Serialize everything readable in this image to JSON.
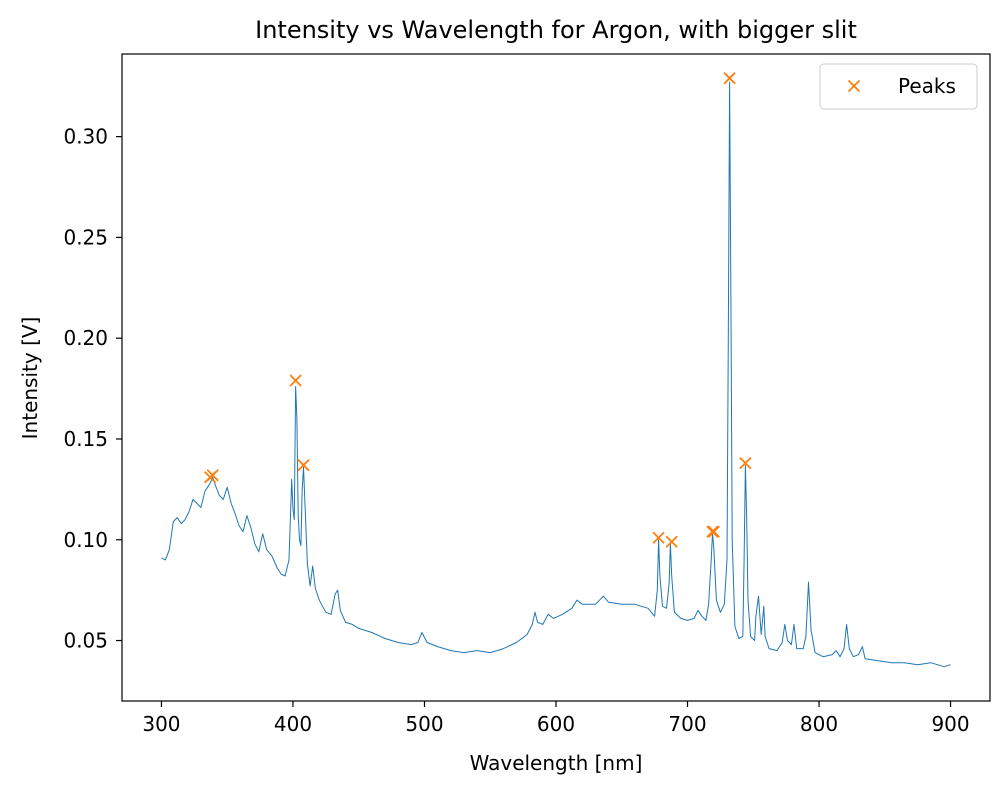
{
  "chart_data": {
    "type": "line",
    "title": "Intensity vs Wavelength for Argon, with bigger slit",
    "xlabel": "Wavelength [nm]",
    "ylabel": "Intensity [V]",
    "xlim": [
      270,
      930
    ],
    "ylim": [
      0.02,
      0.341
    ],
    "xticks": [
      300,
      400,
      500,
      600,
      700,
      800,
      900
    ],
    "xtick_labels": [
      "300",
      "400",
      "500",
      "600",
      "700",
      "800",
      "900"
    ],
    "yticks": [
      0.05,
      0.1,
      0.15,
      0.2,
      0.25,
      0.3
    ],
    "ytick_labels": [
      "0.05",
      "0.10",
      "0.15",
      "0.20",
      "0.25",
      "0.30"
    ],
    "grid": false,
    "legend": {
      "position": "top-right",
      "entries": [
        "Peaks"
      ]
    },
    "colors": {
      "spectrum": "#1f77b4",
      "peaks": "#ff7f0e"
    },
    "series": [
      {
        "kind": "line",
        "points": [
          [
            300,
            0.091
          ],
          [
            303,
            0.09
          ],
          [
            306,
            0.095
          ],
          [
            309,
            0.109
          ],
          [
            312,
            0.111
          ],
          [
            315,
            0.108
          ],
          [
            318,
            0.11
          ],
          [
            321,
            0.114
          ],
          [
            324,
            0.12
          ],
          [
            327,
            0.118
          ],
          [
            330,
            0.116
          ],
          [
            333,
            0.124
          ],
          [
            335,
            0.126
          ],
          [
            337,
            0.128
          ],
          [
            339,
            0.131
          ],
          [
            341,
            0.127
          ],
          [
            344,
            0.122
          ],
          [
            347,
            0.12
          ],
          [
            350,
            0.126
          ],
          [
            353,
            0.118
          ],
          [
            356,
            0.113
          ],
          [
            359,
            0.107
          ],
          [
            362,
            0.104
          ],
          [
            365,
            0.112
          ],
          [
            368,
            0.106
          ],
          [
            371,
            0.098
          ],
          [
            374,
            0.094
          ],
          [
            377,
            0.103
          ],
          [
            380,
            0.095
          ],
          [
            384,
            0.092
          ],
          [
            388,
            0.086
          ],
          [
            391,
            0.083
          ],
          [
            394,
            0.082
          ],
          [
            397,
            0.09
          ],
          [
            399,
            0.13
          ],
          [
            400,
            0.115
          ],
          [
            401,
            0.11
          ],
          [
            402,
            0.176
          ],
          [
            403,
            0.16
          ],
          [
            404,
            0.112
          ],
          [
            405,
            0.1
          ],
          [
            406,
            0.097
          ],
          [
            407,
            0.125
          ],
          [
            408,
            0.136
          ],
          [
            409,
            0.12
          ],
          [
            411,
            0.088
          ],
          [
            413,
            0.077
          ],
          [
            415,
            0.087
          ],
          [
            417,
            0.076
          ],
          [
            420,
            0.07
          ],
          [
            425,
            0.064
          ],
          [
            429,
            0.063
          ],
          [
            432,
            0.073
          ],
          [
            434,
            0.075
          ],
          [
            436,
            0.065
          ],
          [
            440,
            0.059
          ],
          [
            445,
            0.058
          ],
          [
            450,
            0.056
          ],
          [
            460,
            0.054
          ],
          [
            470,
            0.051
          ],
          [
            480,
            0.049
          ],
          [
            490,
            0.048
          ],
          [
            495,
            0.049
          ],
          [
            498,
            0.054
          ],
          [
            502,
            0.049
          ],
          [
            510,
            0.047
          ],
          [
            520,
            0.045
          ],
          [
            530,
            0.044
          ],
          [
            540,
            0.045
          ],
          [
            550,
            0.044
          ],
          [
            560,
            0.046
          ],
          [
            570,
            0.049
          ],
          [
            578,
            0.053
          ],
          [
            582,
            0.058
          ],
          [
            584,
            0.064
          ],
          [
            586,
            0.059
          ],
          [
            590,
            0.058
          ],
          [
            594,
            0.063
          ],
          [
            598,
            0.061
          ],
          [
            605,
            0.063
          ],
          [
            612,
            0.066
          ],
          [
            616,
            0.07
          ],
          [
            620,
            0.068
          ],
          [
            630,
            0.068
          ],
          [
            636,
            0.072
          ],
          [
            640,
            0.069
          ],
          [
            650,
            0.068
          ],
          [
            660,
            0.068
          ],
          [
            670,
            0.066
          ],
          [
            675,
            0.062
          ],
          [
            677,
            0.075
          ],
          [
            678,
            0.1
          ],
          [
            679,
            0.082
          ],
          [
            681,
            0.067
          ],
          [
            684,
            0.066
          ],
          [
            686,
            0.078
          ],
          [
            687,
            0.098
          ],
          [
            688,
            0.082
          ],
          [
            690,
            0.064
          ],
          [
            695,
            0.061
          ],
          [
            700,
            0.06
          ],
          [
            705,
            0.061
          ],
          [
            708,
            0.065
          ],
          [
            711,
            0.062
          ],
          [
            714,
            0.06
          ],
          [
            716,
            0.068
          ],
          [
            718,
            0.09
          ],
          [
            719,
            0.103
          ],
          [
            720,
            0.096
          ],
          [
            722,
            0.07
          ],
          [
            725,
            0.064
          ],
          [
            728,
            0.068
          ],
          [
            730,
            0.09
          ],
          [
            731,
            0.2
          ],
          [
            732,
            0.327
          ],
          [
            733,
            0.22
          ],
          [
            734,
            0.1
          ],
          [
            736,
            0.057
          ],
          [
            739,
            0.051
          ],
          [
            742,
            0.052
          ],
          [
            743,
            0.09
          ],
          [
            744,
            0.137
          ],
          [
            745,
            0.11
          ],
          [
            746,
            0.07
          ],
          [
            748,
            0.052
          ],
          [
            751,
            0.05
          ],
          [
            752,
            0.062
          ],
          [
            754,
            0.072
          ],
          [
            756,
            0.053
          ],
          [
            757,
            0.06
          ],
          [
            758,
            0.067
          ],
          [
            759,
            0.052
          ],
          [
            762,
            0.046
          ],
          [
            768,
            0.045
          ],
          [
            772,
            0.049
          ],
          [
            774,
            0.058
          ],
          [
            776,
            0.05
          ],
          [
            779,
            0.048
          ],
          [
            781,
            0.058
          ],
          [
            783,
            0.046
          ],
          [
            788,
            0.046
          ],
          [
            790,
            0.052
          ],
          [
            792,
            0.079
          ],
          [
            794,
            0.055
          ],
          [
            797,
            0.044
          ],
          [
            803,
            0.042
          ],
          [
            810,
            0.043
          ],
          [
            813,
            0.045
          ],
          [
            816,
            0.042
          ],
          [
            819,
            0.046
          ],
          [
            821,
            0.058
          ],
          [
            823,
            0.046
          ],
          [
            826,
            0.042
          ],
          [
            830,
            0.043
          ],
          [
            833,
            0.047
          ],
          [
            835,
            0.041
          ],
          [
            845,
            0.04
          ],
          [
            855,
            0.039
          ],
          [
            865,
            0.039
          ],
          [
            875,
            0.038
          ],
          [
            885,
            0.039
          ],
          [
            890,
            0.038
          ],
          [
            895,
            0.037
          ],
          [
            900,
            0.038
          ]
        ]
      },
      {
        "name": "Peaks",
        "kind": "markers",
        "points": [
          [
            337,
            0.131
          ],
          [
            339,
            0.132
          ],
          [
            402,
            0.179
          ],
          [
            408,
            0.137
          ],
          [
            678,
            0.101
          ],
          [
            688,
            0.099
          ],
          [
            719,
            0.104
          ],
          [
            720,
            0.104
          ],
          [
            732,
            0.329
          ],
          [
            744,
            0.138
          ]
        ]
      }
    ]
  }
}
